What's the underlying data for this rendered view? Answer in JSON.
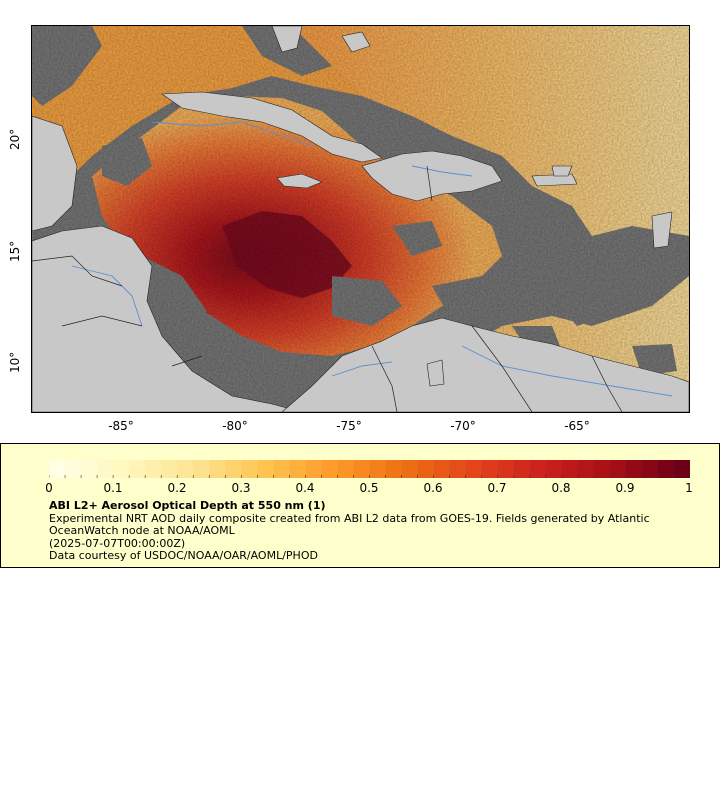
{
  "map": {
    "x_ticks": [
      "-85°",
      "-80°",
      "-75°",
      "-70°",
      "-65°"
    ],
    "y_ticks": [
      "20°",
      "15°",
      "10°"
    ],
    "colors": {
      "land": "#c8c8c8",
      "nodata": "#7a7a7a",
      "coast": "#000000",
      "river": "#5b8fcf"
    }
  },
  "legend": {
    "cb_ticks": [
      "0",
      "0.1",
      "0.2",
      "0.3",
      "0.4",
      "0.5",
      "0.6",
      "0.7",
      "0.8",
      "0.9",
      "1"
    ],
    "title": "ABI L2+ Aerosol Optical Depth at 550 nm (1)",
    "line1": "Experimental NRT AOD daily composite created from ABI L2 data from GOES-19. Fields generated by Atlantic",
    "line2": "OceanWatch node at NOAA/AOML",
    "line3": "(2025-07-07T00:00:00Z)",
    "line4": "Data courtesy of USDOC/NOAA/OAR/AOML/PHOD",
    "palette": [
      "#ffffe5",
      "#fff7bc",
      "#fee391",
      "#fec44f",
      "#fe9929",
      "#ec7014",
      "#e3441c",
      "#cc1f1f",
      "#a50f15",
      "#6b0018"
    ]
  }
}
